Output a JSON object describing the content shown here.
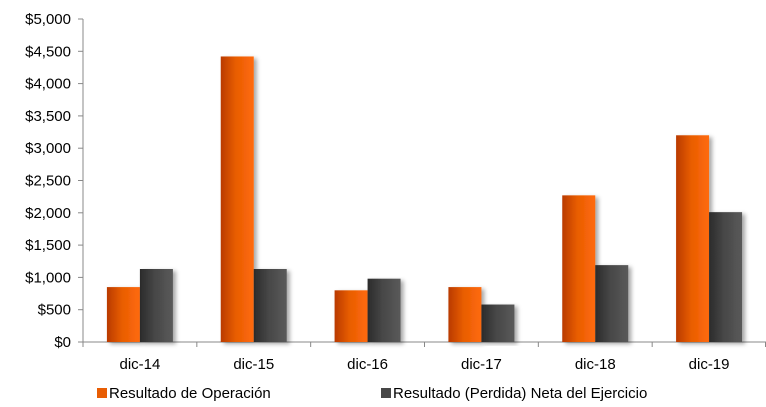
{
  "chart_data": {
    "type": "bar",
    "title": "",
    "xlabel": "",
    "ylabel": "",
    "categories": [
      "dic-14",
      "dic-15",
      "dic-16",
      "dic-17",
      "dic-18",
      "dic-19"
    ],
    "series": [
      {
        "name": "Resultado de Operación",
        "color": "#e85d04",
        "values": [
          850,
          4420,
          800,
          850,
          2270,
          3200
        ]
      },
      {
        "name": "Resultado (Perdida) Neta del Ejercicio",
        "color": "#474747",
        "values": [
          1130,
          1130,
          980,
          580,
          1190,
          2010
        ]
      }
    ],
    "ylim": [
      0,
      5000
    ],
    "yticks": [
      0,
      500,
      1000,
      1500,
      2000,
      2500,
      3000,
      3500,
      4000,
      4500,
      5000
    ],
    "ytick_labels": [
      "$0",
      "$500",
      "$1,000",
      "$1,500",
      "$2,000",
      "$2,500",
      "$3,000",
      "$3,500",
      "$4,000",
      "$4,500",
      "$5,000"
    ],
    "grid": false,
    "legend_position": "bottom"
  }
}
